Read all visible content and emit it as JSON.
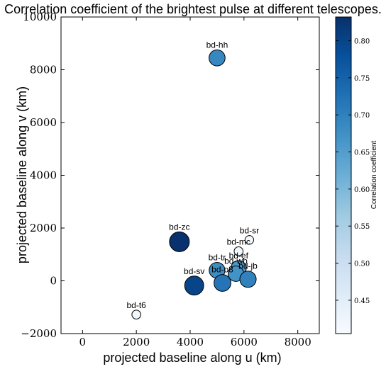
{
  "chart_data": {
    "type": "scatter",
    "title": "Correlation coefficient of the brightest pulse at different telescopes.",
    "xlabel": "projected baseline along u (km)",
    "ylabel": "projected baseline along v (km)",
    "xlim": [
      -800,
      8800
    ],
    "ylim": [
      -2000,
      10000
    ],
    "xticks": [
      0,
      2000,
      4000,
      6000,
      8000
    ],
    "yticks": [
      -2000,
      0,
      2000,
      4000,
      6000,
      8000,
      10000
    ],
    "xtick_labels": [
      "0",
      "2000",
      "4000",
      "6000",
      "8000"
    ],
    "ytick_labels": [
      "−2000",
      "0",
      "2000",
      "4000",
      "6000",
      "8000",
      "10000"
    ],
    "grid": false,
    "colorbar": {
      "label": "Correlation coefficient",
      "range": [
        0.405,
        0.832
      ],
      "ticks": [
        0.45,
        0.5,
        0.55,
        0.6,
        0.65,
        0.7,
        0.75,
        0.8
      ],
      "tick_labels": [
        "0.45",
        "0.50",
        "0.55",
        "0.60",
        "0.65",
        "0.70",
        "0.75",
        "0.80"
      ],
      "colormap": "Blues",
      "color_low": "#f7fbff",
      "color_high": "#08306b"
    },
    "points": [
      {
        "label": "bd-hh",
        "x": 5000,
        "y": 8450,
        "value": 0.69
      },
      {
        "label": "bd-zc",
        "x": 3600,
        "y": 1480,
        "value": 0.83
      },
      {
        "label": "bd-sr",
        "x": 6200,
        "y": 1550,
        "value": 0.41
      },
      {
        "label": "bd-mc",
        "x": 5800,
        "y": 1120,
        "value": 0.42
      },
      {
        "label": "bd-tr",
        "x": 5000,
        "y": 400,
        "value": 0.68
      },
      {
        "label": "bd-ef",
        "x": 5800,
        "y": 480,
        "value": 0.66
      },
      {
        "label": "bd-wb",
        "x": 5700,
        "y": 270,
        "value": 0.67
      },
      {
        "label": "bd-jb",
        "x": 6150,
        "y": 60,
        "value": 0.7
      },
      {
        "label": "bd-sv",
        "x": 4150,
        "y": -180,
        "value": 0.8
      },
      {
        "label": "bd-o8",
        "x": 5200,
        "y": -80,
        "value": 0.72
      },
      {
        "label": "bd-t6",
        "x": 2000,
        "y": -1280,
        "value": 0.42
      }
    ]
  }
}
